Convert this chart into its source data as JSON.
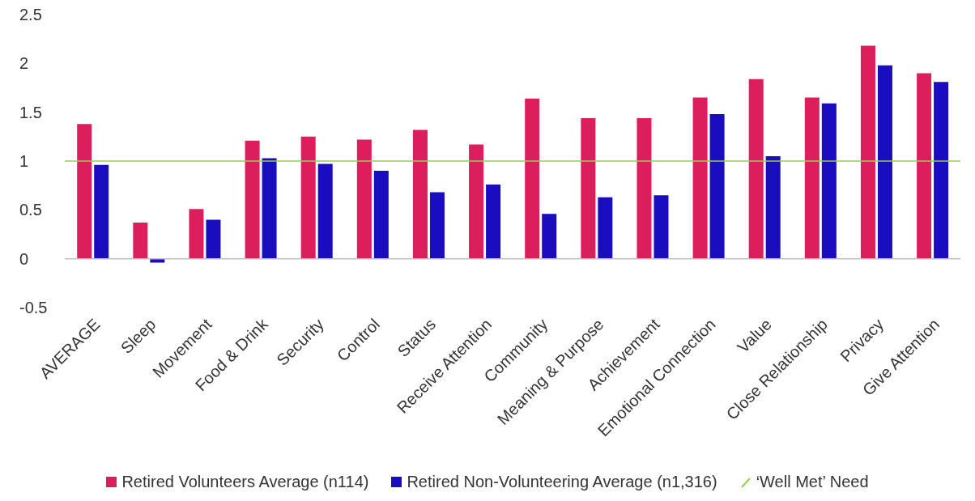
{
  "chart_data": {
    "type": "bar",
    "categories": [
      "AVERAGE",
      "Sleep",
      "Movement",
      "Food & Drink",
      "Security",
      "Control",
      "Status",
      "Receive Attention",
      "Community",
      "Meaning & Purpose",
      "Achievement",
      "Emotional Connection",
      "Value",
      "Close Relationship",
      "Privacy",
      "Give Attention"
    ],
    "series": [
      {
        "name": "Retired Volunteers Average (n114)",
        "color": "#dc1e5c",
        "values": [
          1.38,
          0.37,
          0.51,
          1.21,
          1.25,
          1.22,
          1.32,
          1.17,
          1.64,
          1.44,
          1.44,
          1.65,
          1.84,
          1.65,
          2.18,
          1.9
        ]
      },
      {
        "name": "Retired Non-Volunteering Average (n1,316)",
        "color": "#1a0dbf",
        "values": [
          0.96,
          -0.04,
          0.4,
          1.03,
          0.97,
          0.9,
          0.68,
          0.76,
          0.46,
          0.63,
          0.65,
          1.48,
          1.05,
          1.59,
          1.98,
          1.81
        ]
      }
    ],
    "ylim": [
      -0.5,
      2.5
    ],
    "yticks": [
      -0.5,
      0,
      0.5,
      1,
      1.5,
      2,
      2.5
    ],
    "legend": "bottom",
    "ref_lines": [
      {
        "axis": "y",
        "value": 1,
        "label": "‘Well Met’ Need",
        "color": "#92d050"
      }
    ]
  }
}
